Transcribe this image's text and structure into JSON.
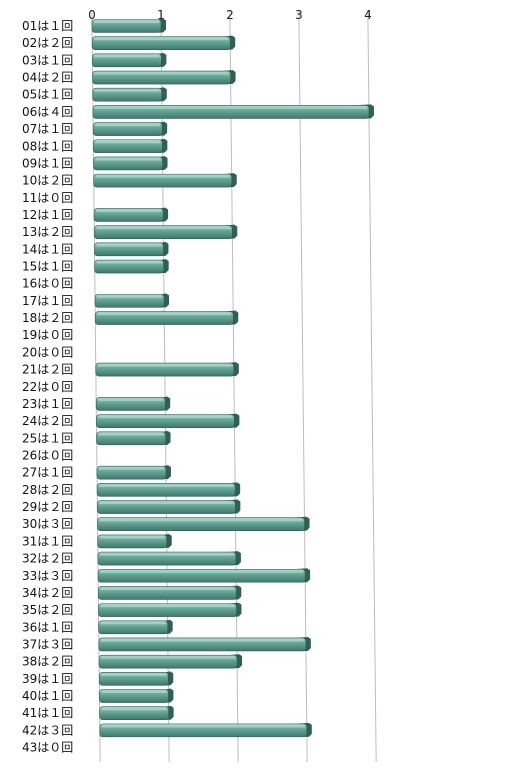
{
  "chart_data": {
    "type": "bar",
    "orientation": "horizontal",
    "categories": [
      "01は１回",
      "02は２回",
      "03は１回",
      "04は２回",
      "05は１回",
      "06は４回",
      "07は１回",
      "08は１回",
      "09は１回",
      "10は２回",
      "11は０回",
      "12は１回",
      "13は２回",
      "14は１回",
      "15は１回",
      "16は０回",
      "17は１回",
      "18は２回",
      "19は０回",
      "20は０回",
      "21は２回",
      "22は０回",
      "23は１回",
      "24は２回",
      "25は１回",
      "26は０回",
      "27は１回",
      "28は２回",
      "29は２回",
      "30は３回",
      "31は１回",
      "32は２回",
      "33は３回",
      "34は２回",
      "35は２回",
      "36は１回",
      "37は３回",
      "38は２回",
      "39は１回",
      "40は１回",
      "41は１回",
      "42は３回",
      "43は０回"
    ],
    "values": [
      1,
      2,
      1,
      2,
      1,
      4,
      1,
      1,
      1,
      2,
      0,
      1,
      2,
      1,
      1,
      0,
      1,
      2,
      0,
      0,
      2,
      0,
      1,
      2,
      1,
      0,
      1,
      2,
      2,
      3,
      1,
      2,
      3,
      2,
      2,
      1,
      3,
      2,
      1,
      1,
      1,
      3,
      0
    ],
    "xlim": [
      0,
      4
    ],
    "x_ticks": [
      0,
      1,
      2,
      3,
      4
    ],
    "grid": true,
    "colors": {
      "bar_face": "#5e9e90",
      "bar_highlight": "#a7d3c7",
      "bar_shadow": "#2f5f55",
      "gridline": "#bdbdbd"
    }
  }
}
